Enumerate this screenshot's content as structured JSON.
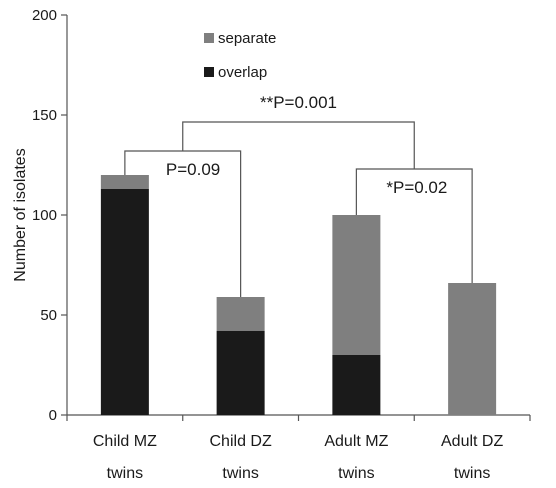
{
  "chart_data": {
    "type": "bar",
    "stacked": true,
    "ylabel": "Number of isolates",
    "ylim": [
      0,
      200
    ],
    "yticks": [
      0,
      50,
      100,
      150,
      200
    ],
    "categories": [
      {
        "line1": "Child MZ",
        "line2": "twins"
      },
      {
        "line1": "Child DZ",
        "line2": "twins"
      },
      {
        "line1": "Adult MZ",
        "line2": "twins"
      },
      {
        "line1": "Adult DZ",
        "line2": "twins"
      }
    ],
    "series": [
      {
        "name": "overlap",
        "color": "#1a1a1a",
        "values": [
          113,
          42,
          30,
          0
        ]
      },
      {
        "name": "separate",
        "color": "#7f7f7f",
        "values": [
          7,
          17,
          70,
          66
        ]
      }
    ],
    "legend": {
      "position": "top-center",
      "order": [
        "separate",
        "overlap"
      ]
    },
    "annotations": [
      {
        "text": "**P=0.001",
        "left_index": 0,
        "right_index": 2
      },
      {
        "text": "P=0.09",
        "left_index": 0,
        "right_index": 1
      },
      {
        "text": "*P=0.02",
        "left_index": 2,
        "right_index": 3
      }
    ]
  }
}
